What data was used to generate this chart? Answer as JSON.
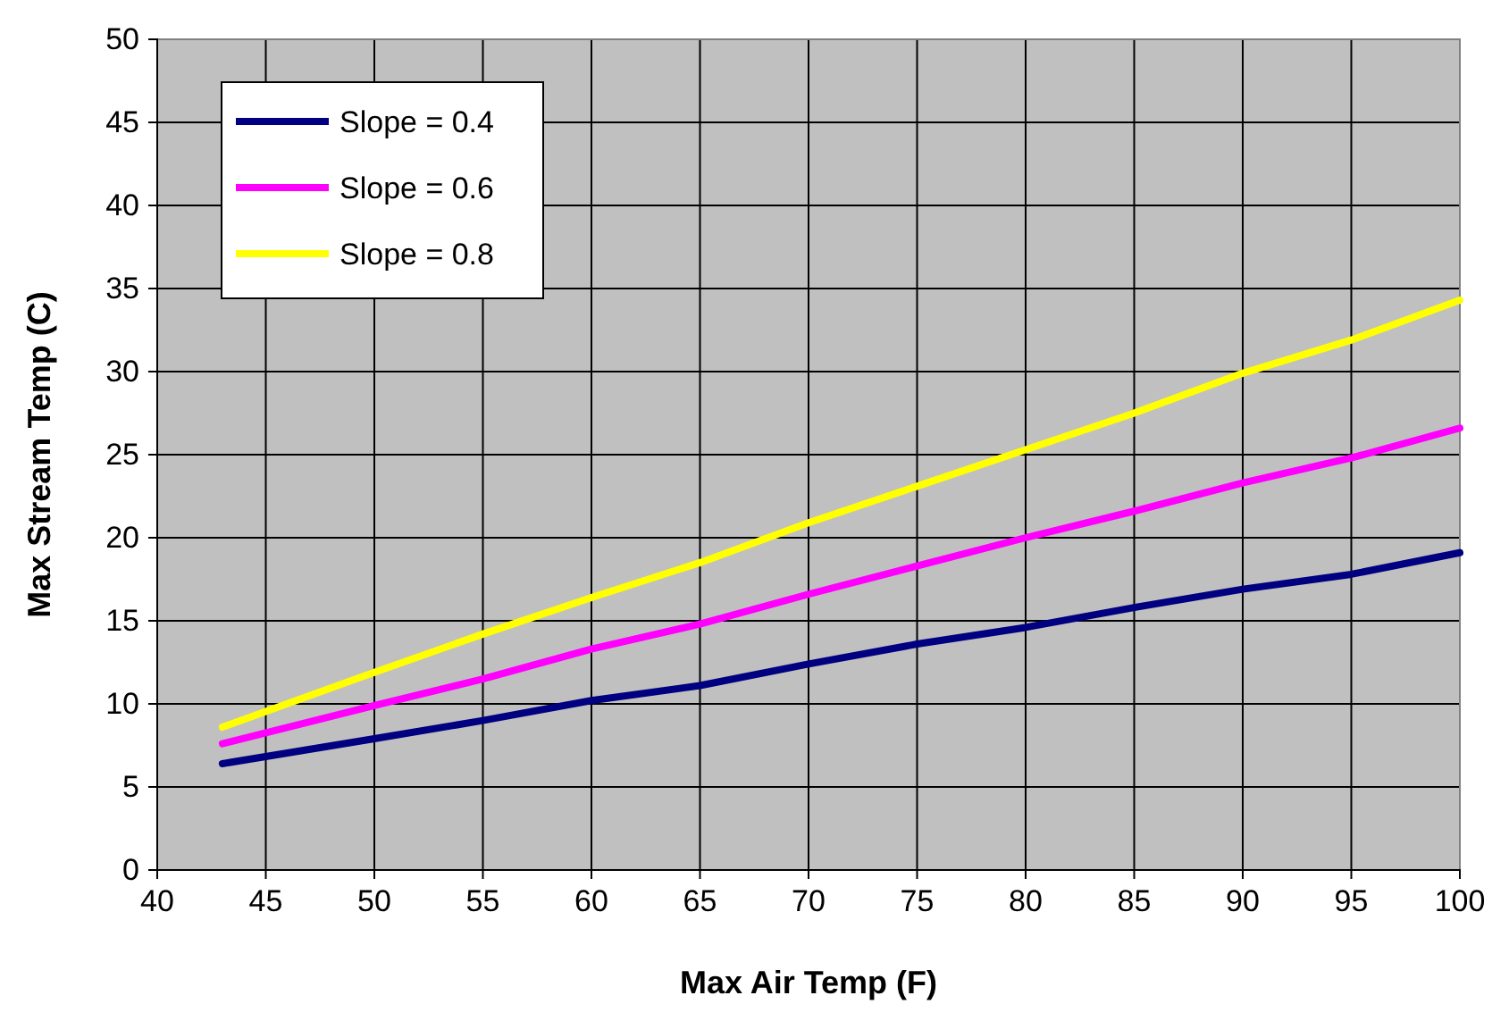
{
  "chart_data": {
    "type": "line",
    "xlabel": "Max Air Temp (F)",
    "ylabel": "Max Stream Temp (C)",
    "x": [
      43,
      50,
      55,
      60,
      65,
      70,
      75,
      80,
      85,
      90,
      95,
      100
    ],
    "xlim": [
      40,
      100
    ],
    "xticks": [
      40,
      45,
      50,
      55,
      60,
      65,
      70,
      75,
      80,
      85,
      90,
      95,
      100
    ],
    "ylim": [
      0,
      50
    ],
    "yticks": [
      0,
      5,
      10,
      15,
      20,
      25,
      30,
      35,
      40,
      45,
      50
    ],
    "grid": true,
    "legend": "top left",
    "marker": "none",
    "line_style": "solid",
    "series": [
      {
        "name": "Slope = 0.4",
        "color": "#000080",
        "values": [
          6.4,
          7.9,
          9.0,
          10.2,
          11.1,
          12.4,
          13.6,
          14.6,
          15.8,
          16.9,
          17.8,
          19.1
        ]
      },
      {
        "name": "Slope = 0.6",
        "color": "#ff00ff",
        "values": [
          7.6,
          9.9,
          11.5,
          13.3,
          14.8,
          16.6,
          18.3,
          20.0,
          21.6,
          23.3,
          24.8,
          26.6
        ]
      },
      {
        "name": "Slope = 0.8",
        "color": "#ffff00",
        "values": [
          8.6,
          11.9,
          14.2,
          16.4,
          18.5,
          20.9,
          23.1,
          25.3,
          27.5,
          29.9,
          31.9,
          34.3
        ]
      }
    ]
  }
}
